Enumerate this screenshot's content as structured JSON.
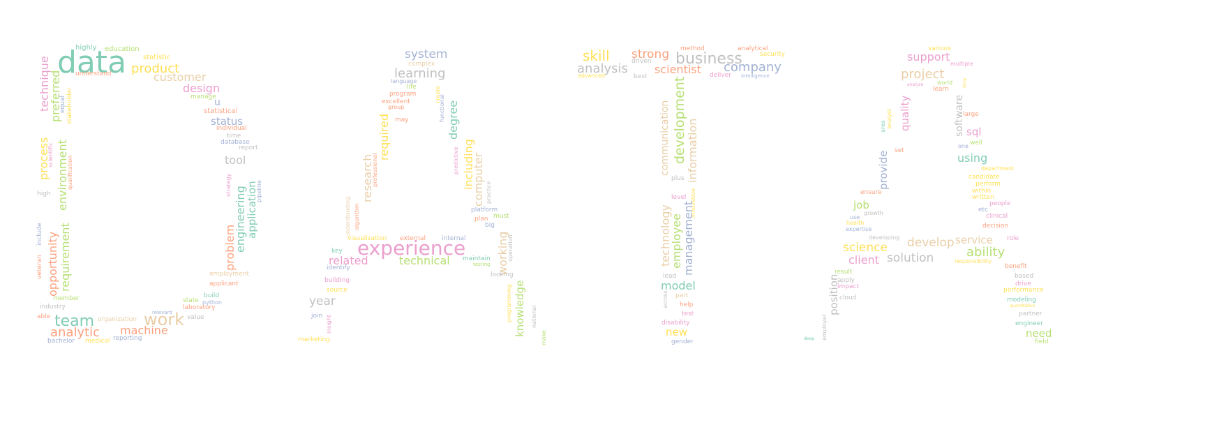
{
  "palette": {
    "pink": "#e78ac3",
    "green": "#66c2a5",
    "orange": "#fc8d62",
    "blue": "#8da0cb",
    "lime": "#a6d854",
    "yellow": "#ffd92f",
    "tan": "#e5c494",
    "gray": "#b3b3b3"
  },
  "groups": [
    {
      "name": "letter-d",
      "words": [
        "data",
        "highly",
        "education",
        "statistic",
        "product",
        "understand",
        "customer",
        "design",
        "technique",
        "preferred",
        "equal",
        "stakeholder",
        "manage",
        "u",
        "statistical",
        "status",
        "individual",
        "time",
        "database",
        "report",
        "process",
        "scientific",
        "qualification",
        "environment",
        "tool",
        "strategy",
        "engineering",
        "application",
        "pipeline",
        "high",
        "include",
        "opportunity",
        "requirement",
        "problem",
        "veteran",
        "employment",
        "applicant",
        "member",
        "build",
        "state",
        "python",
        "laboratory",
        "industry",
        "relevant",
        "value",
        "able",
        "team",
        "organization",
        "work",
        "analytic",
        "machine",
        "bachelor",
        "medical",
        "reporting"
      ]
    },
    {
      "name": "letter-a1",
      "words": [
        "system",
        "complex",
        "learning",
        "language",
        "life",
        "program",
        "create",
        "excellent",
        "group",
        "functional",
        "may",
        "degree",
        "required",
        "professional",
        "predictive",
        "including",
        "research",
        "computer",
        "practice",
        "understanding",
        "algorithm",
        "platform",
        "must",
        "plan",
        "big",
        "experience",
        "visualization",
        "external",
        "internal",
        "working",
        "key",
        "related",
        "technical",
        "maintain",
        "testing",
        "identify",
        "operation",
        "looking",
        "building",
        "source",
        "year",
        "knowledge",
        "programming",
        "national",
        "join",
        "insight",
        "marketing",
        "make"
      ]
    },
    {
      "name": "letter-t",
      "words": [
        "skill",
        "strong",
        "method",
        "driven",
        "business",
        "analytical",
        "security",
        "analysis",
        "company",
        "advanced",
        "best",
        "scientist",
        "deliver",
        "intelligence",
        "development",
        "communication",
        "information",
        "plus",
        "technology",
        "level",
        "innovative",
        "employee",
        "management",
        "lead",
        "model",
        "across",
        "part",
        "help",
        "test",
        "disability",
        "new",
        "gender"
      ]
    },
    {
      "name": "letter-a2",
      "words": [
        "various",
        "support",
        "multiple",
        "project",
        "world",
        "analyze",
        "learn",
        "drug",
        "quality",
        "area",
        "analyst",
        "software",
        "large",
        "sql",
        "well",
        "one",
        "provide",
        "set",
        "using",
        "department",
        "candidate",
        "perform",
        "within",
        "written",
        "ensure",
        "job",
        "growth",
        "people",
        "etc",
        "use",
        "health",
        "clinical",
        "expertise",
        "decision",
        "developing",
        "service",
        "role",
        "science",
        "develop",
        "ability",
        "client",
        "solution",
        "responsibility",
        "benefit",
        "result",
        "based",
        "apply",
        "drive",
        "position",
        "impact",
        "performance",
        "cloud",
        "modeling",
        "quantitative",
        "partner",
        "employer",
        "engineer",
        "deep",
        "need",
        "field"
      ]
    }
  ]
}
